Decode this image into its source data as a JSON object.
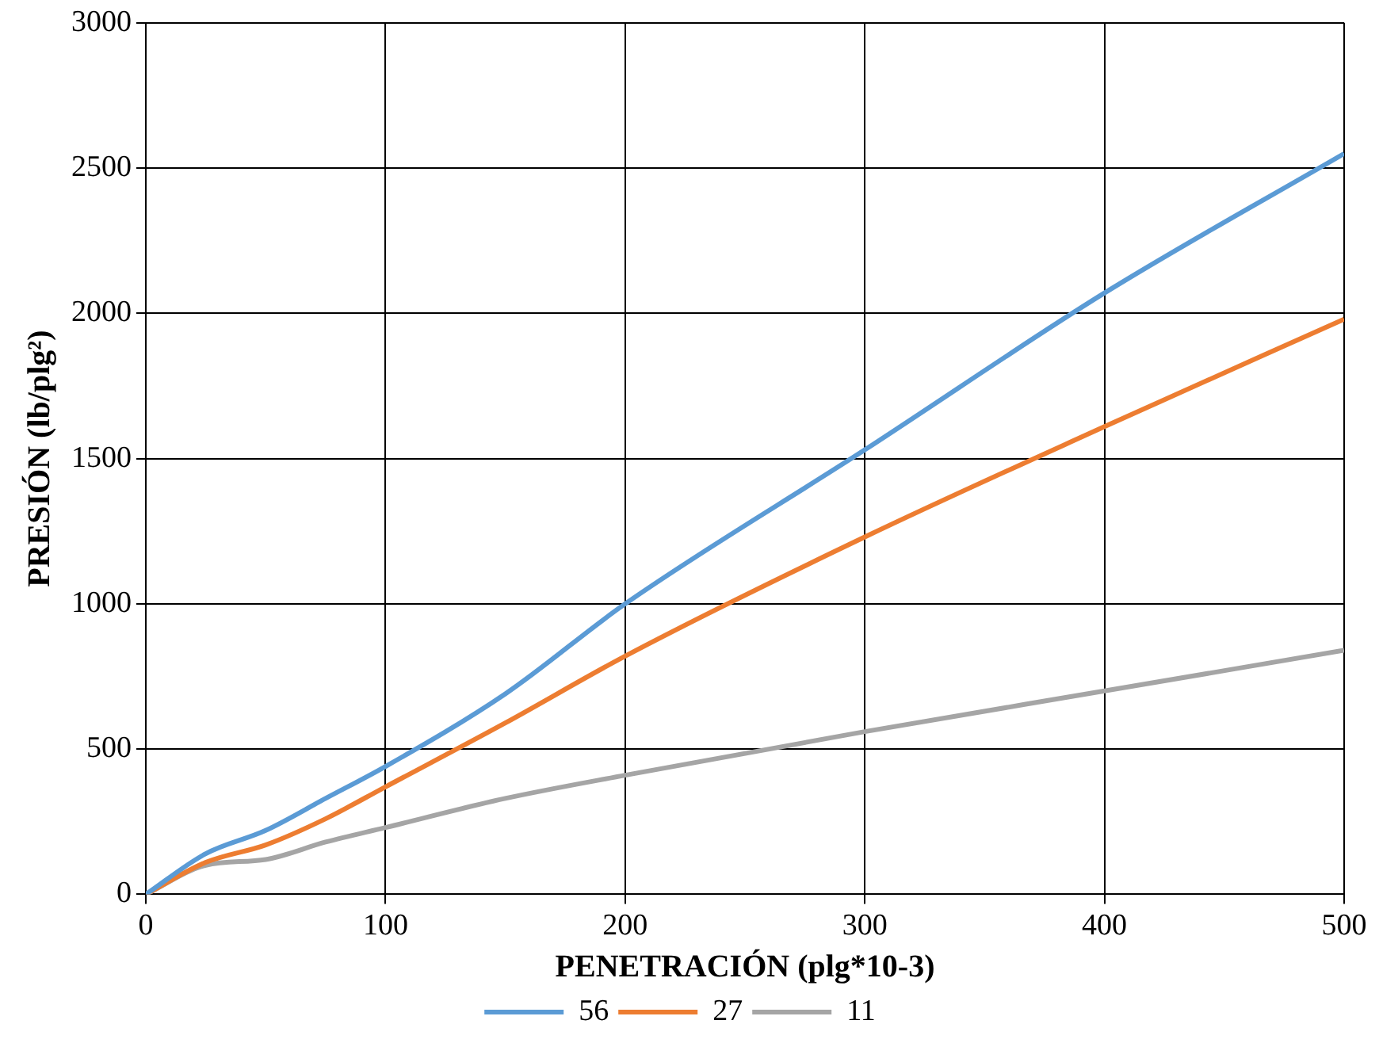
{
  "chart_data": {
    "type": "line",
    "xlabel": "PENETRACIÓN (plg*10-3)",
    "ylabel": "PRESIÓN (lb/plg²)",
    "x": [
      0,
      25,
      50,
      75,
      100,
      150,
      200,
      300,
      400,
      500
    ],
    "series": [
      {
        "name": "56",
        "color": "#5b9bd5",
        "values": [
          0,
          140,
          220,
          330,
          440,
          690,
          1000,
          1530,
          2070,
          2550
        ]
      },
      {
        "name": "27",
        "color": "#ed7d31",
        "values": [
          0,
          110,
          170,
          260,
          370,
          590,
          820,
          1230,
          1610,
          1980
        ]
      },
      {
        "name": "11",
        "color": "#a5a5a5",
        "values": [
          0,
          100,
          120,
          180,
          230,
          330,
          410,
          560,
          700,
          840
        ]
      }
    ],
    "xlim": [
      0,
      500
    ],
    "xticks": [
      0,
      100,
      200,
      300,
      400,
      500
    ],
    "ylim": [
      0,
      3000
    ],
    "yticks": [
      0,
      500,
      1000,
      1500,
      2000,
      2500,
      3000
    ],
    "grid": true,
    "legend": "bottom",
    "marker": "none",
    "line_style": "solid"
  }
}
